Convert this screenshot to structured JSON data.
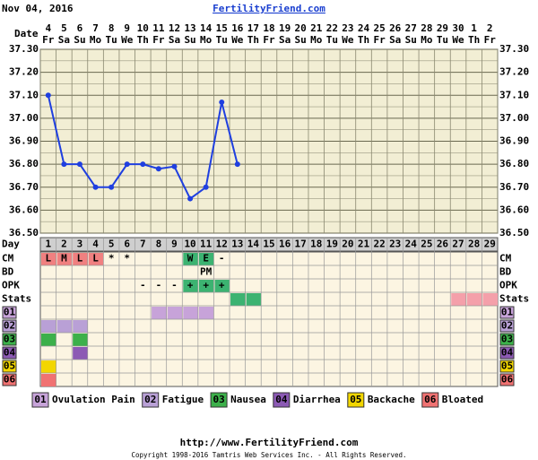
{
  "header": {
    "date": "Nov 04, 2016",
    "site": "FertilityFriend.com"
  },
  "dates": {
    "label": "Date",
    "numbers": [
      "4",
      "5",
      "6",
      "7",
      "8",
      "9",
      "10",
      "11",
      "12",
      "13",
      "14",
      "15",
      "16",
      "17",
      "18",
      "19",
      "20",
      "21",
      "22",
      "23",
      "24",
      "25",
      "26",
      "27",
      "28",
      "29",
      "30",
      "1",
      "2"
    ],
    "weekdays": [
      "Fr",
      "Sa",
      "Su",
      "Mo",
      "Tu",
      "We",
      "Th",
      "Fr",
      "Sa",
      "Su",
      "Mo",
      "Tu",
      "We",
      "Th",
      "Fr",
      "Sa",
      "Su",
      "Mo",
      "Tu",
      "We",
      "Th",
      "Fr",
      "Sa",
      "Su",
      "Mo",
      "Tu",
      "We",
      "Th",
      "Fr"
    ]
  },
  "chart_data": {
    "type": "line",
    "color": "#1f3fe0",
    "x": [
      1,
      2,
      3,
      4,
      5,
      6,
      7,
      8,
      9,
      10,
      11,
      12,
      13
    ],
    "values": [
      37.1,
      36.8,
      36.8,
      36.7,
      36.7,
      36.8,
      36.8,
      36.78,
      36.79,
      36.65,
      36.7,
      37.07,
      36.8
    ],
    "xlim": [
      1,
      29
    ],
    "ylim": [
      36.5,
      37.3
    ],
    "yticks": [
      {
        "value": 36.5,
        "label": "36.50"
      },
      {
        "value": 36.6,
        "label": "36.60"
      },
      {
        "value": 36.7,
        "label": "36.70"
      },
      {
        "value": 36.8,
        "label": "36.80"
      },
      {
        "value": 36.9,
        "label": "36.90"
      },
      {
        "value": 37.0,
        "label": "37.00"
      },
      {
        "value": 37.1,
        "label": "37.10"
      },
      {
        "value": 37.2,
        "label": "37.20"
      },
      {
        "value": 37.3,
        "label": "37.30"
      }
    ],
    "grid": true
  },
  "days": {
    "label": "Day",
    "numbers": [
      1,
      2,
      3,
      4,
      5,
      6,
      7,
      8,
      9,
      10,
      11,
      12,
      13,
      14,
      15,
      16,
      17,
      18,
      19,
      20,
      21,
      22,
      23,
      24,
      25,
      26,
      27,
      28,
      29
    ]
  },
  "rows": [
    {
      "label": "CM",
      "cells": [
        {
          "day": 1,
          "text": "L",
          "color": "#f08080"
        },
        {
          "day": 2,
          "text": "M",
          "color": "#f08080"
        },
        {
          "day": 3,
          "text": "L",
          "color": "#f08080"
        },
        {
          "day": 4,
          "text": "L",
          "color": "#f08080"
        },
        {
          "day": 5,
          "text": "*"
        },
        {
          "day": 6,
          "text": "*"
        },
        {
          "day": 10,
          "text": "W",
          "color": "#3cb371"
        },
        {
          "day": 11,
          "text": "E",
          "color": "#3cb371"
        },
        {
          "day": 12,
          "text": "-"
        }
      ]
    },
    {
      "label": "BD",
      "cells": [
        {
          "day": 11,
          "text": "PM"
        }
      ]
    },
    {
      "label": "OPK",
      "cells": [
        {
          "day": 7,
          "text": "-"
        },
        {
          "day": 8,
          "text": "-"
        },
        {
          "day": 9,
          "text": "-"
        },
        {
          "day": 10,
          "text": "+",
          "color": "#3cb371"
        },
        {
          "day": 11,
          "text": "+",
          "color": "#3cb371"
        },
        {
          "day": 12,
          "text": "+",
          "color": "#3cb371"
        }
      ]
    },
    {
      "label": "Stats",
      "cells": [
        {
          "day": 13,
          "color": "#3cb371"
        },
        {
          "day": 14,
          "color": "#3cb371"
        },
        {
          "day": 27,
          "color": "#f4a0aa"
        },
        {
          "day": 28,
          "color": "#f4a0aa"
        },
        {
          "day": 29,
          "color": "#f4a0aa"
        }
      ]
    }
  ],
  "symptoms": [
    {
      "code": "01",
      "name": "Ovulation Pain",
      "color": "#c7a3d9",
      "days": [
        8,
        9,
        10,
        11
      ]
    },
    {
      "code": "02",
      "name": "Fatigue",
      "color": "#b9a0d6",
      "days": [
        1,
        2,
        3
      ]
    },
    {
      "code": "03",
      "name": "Nausea",
      "color": "#3cb04a",
      "days": [
        1,
        3
      ]
    },
    {
      "code": "04",
      "name": "Diarrhea",
      "color": "#8c5ab4",
      "days": [
        3
      ]
    },
    {
      "code": "05",
      "name": "Backache",
      "color": "#f2d600",
      "days": [
        1
      ]
    },
    {
      "code": "06",
      "name": "Bloated",
      "color": "#f07272",
      "days": [
        1
      ]
    }
  ],
  "footer": {
    "url": "http://www.FertilityFriend.com",
    "copyright": "Copyright 1998-2016 Tamtris Web Services Inc. - All Rights Reserved."
  }
}
